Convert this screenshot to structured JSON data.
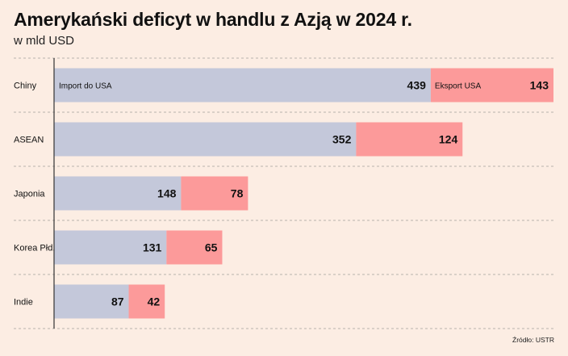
{
  "title": "Amerykański deficyt w handlu z Azją w 2024 r.",
  "subtitle": "w mld USD",
  "source": "Źródło: USTR",
  "colors": {
    "import": "#c4c8da",
    "export": "#fc9a9a",
    "background": "#fcede3",
    "axis": "#333333",
    "grid": "#b8b2ad"
  },
  "chart_data": {
    "type": "bar",
    "orientation": "horizontal",
    "stacked": true,
    "categories": [
      "Chiny",
      "ASEAN",
      "Japonia",
      "Korea Płd.",
      "Indie"
    ],
    "series": [
      {
        "name": "Import do USA",
        "values": [
          439,
          352,
          148,
          131,
          87
        ]
      },
      {
        "name": "Eksport USA",
        "values": [
          143,
          124,
          78,
          65,
          42
        ]
      }
    ],
    "legend": "inline"
  }
}
